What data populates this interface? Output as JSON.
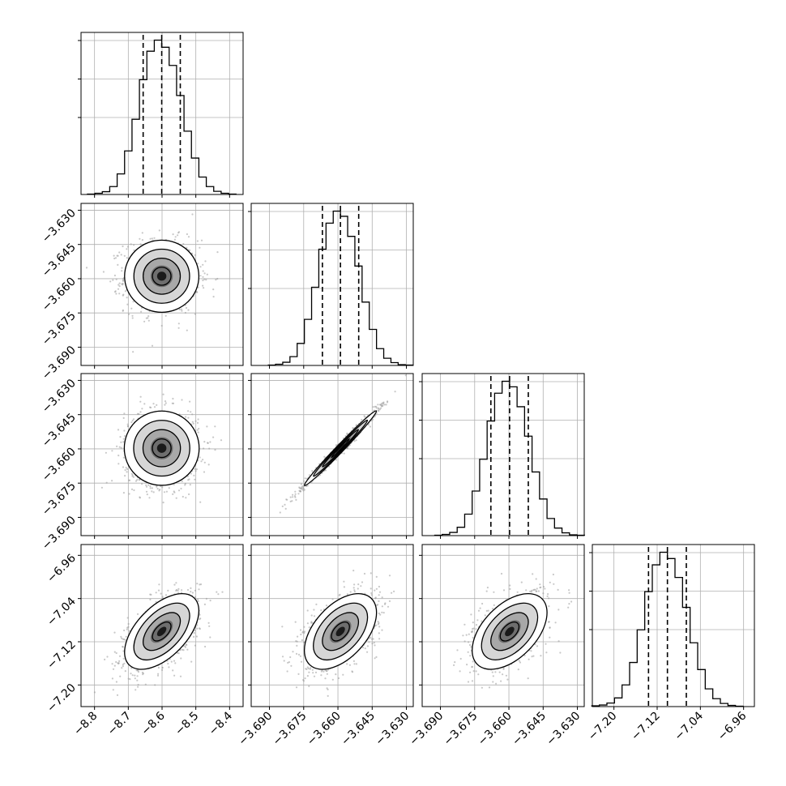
{
  "chart_data": {
    "type": "corner",
    "variables": [
      {
        "range": [
          -8.84,
          -8.36
        ],
        "ticks": [
          -8.8,
          -8.7,
          -8.6,
          -8.5,
          -8.4
        ],
        "tick_labels": [
          "−8.8",
          "−8.7",
          "−8.6",
          "−8.5",
          "−8.4"
        ],
        "quantiles": [
          -8.656,
          -8.601,
          -8.546
        ],
        "median": -8.601,
        "sigma": 0.055
      },
      {
        "range": [
          -3.698,
          -3.627
        ],
        "ticks": [
          -3.69,
          -3.675,
          -3.66,
          -3.645,
          -3.63
        ],
        "tick_labels": [
          "−3.690",
          "−3.675",
          "−3.660",
          "−3.645",
          "−3.630"
        ],
        "quantiles": [
          -3.6668,
          -3.6589,
          -3.6509
        ],
        "median": -3.6589,
        "sigma": 0.0079
      },
      {
        "range": [
          -3.698,
          -3.627
        ],
        "ticks": [
          -3.69,
          -3.675,
          -3.66,
          -3.645,
          -3.63
        ],
        "tick_labels": [
          "−3.690",
          "−3.675",
          "−3.660",
          "−3.645",
          "−3.630"
        ],
        "quantiles": [
          -3.6679,
          -3.6597,
          -3.6515
        ],
        "median": -3.6597,
        "sigma": 0.0082
      },
      {
        "range": [
          -7.24,
          -6.94
        ],
        "ticks": [
          -7.2,
          -7.12,
          -7.04,
          -6.96
        ],
        "tick_labels": [
          "−7.20",
          "−7.12",
          "−7.04",
          "−6.96"
        ],
        "quantiles": [
          -7.136,
          -7.101,
          -7.066
        ],
        "median": -7.101,
        "sigma": 0.035
      }
    ],
    "correlations": [
      [
        1,
        0.0,
        0.0,
        0.55
      ],
      [
        0.0,
        1,
        0.99,
        0.5
      ],
      [
        0.0,
        0.99,
        1,
        0.5
      ],
      [
        0.55,
        0.5,
        0.5,
        1
      ]
    ],
    "histogram_counts": [
      [
        1,
        3,
        7,
        20,
        52,
        110,
        190,
        290,
        362,
        390,
        372,
        326,
        250,
        160,
        92,
        44,
        20,
        8,
        3,
        1
      ],
      [
        1,
        3,
        8,
        22,
        55,
        115,
        195,
        290,
        355,
        385,
        372,
        322,
        248,
        158,
        90,
        42,
        18,
        7,
        2,
        1
      ],
      [
        1,
        3,
        8,
        21,
        54,
        112,
        192,
        288,
        358,
        388,
        374,
        324,
        250,
        160,
        92,
        43,
        19,
        7,
        2,
        1
      ],
      [
        2,
        4,
        9,
        22,
        55,
        112,
        195,
        292,
        360,
        392,
        376,
        328,
        252,
        162,
        94,
        45,
        20,
        8,
        3,
        1
      ]
    ],
    "contour_levels": [
      0.5,
      1.0,
      1.5,
      2.0
    ],
    "grid": true,
    "title": "",
    "labels": [
      "",
      "",
      "",
      ""
    ]
  }
}
